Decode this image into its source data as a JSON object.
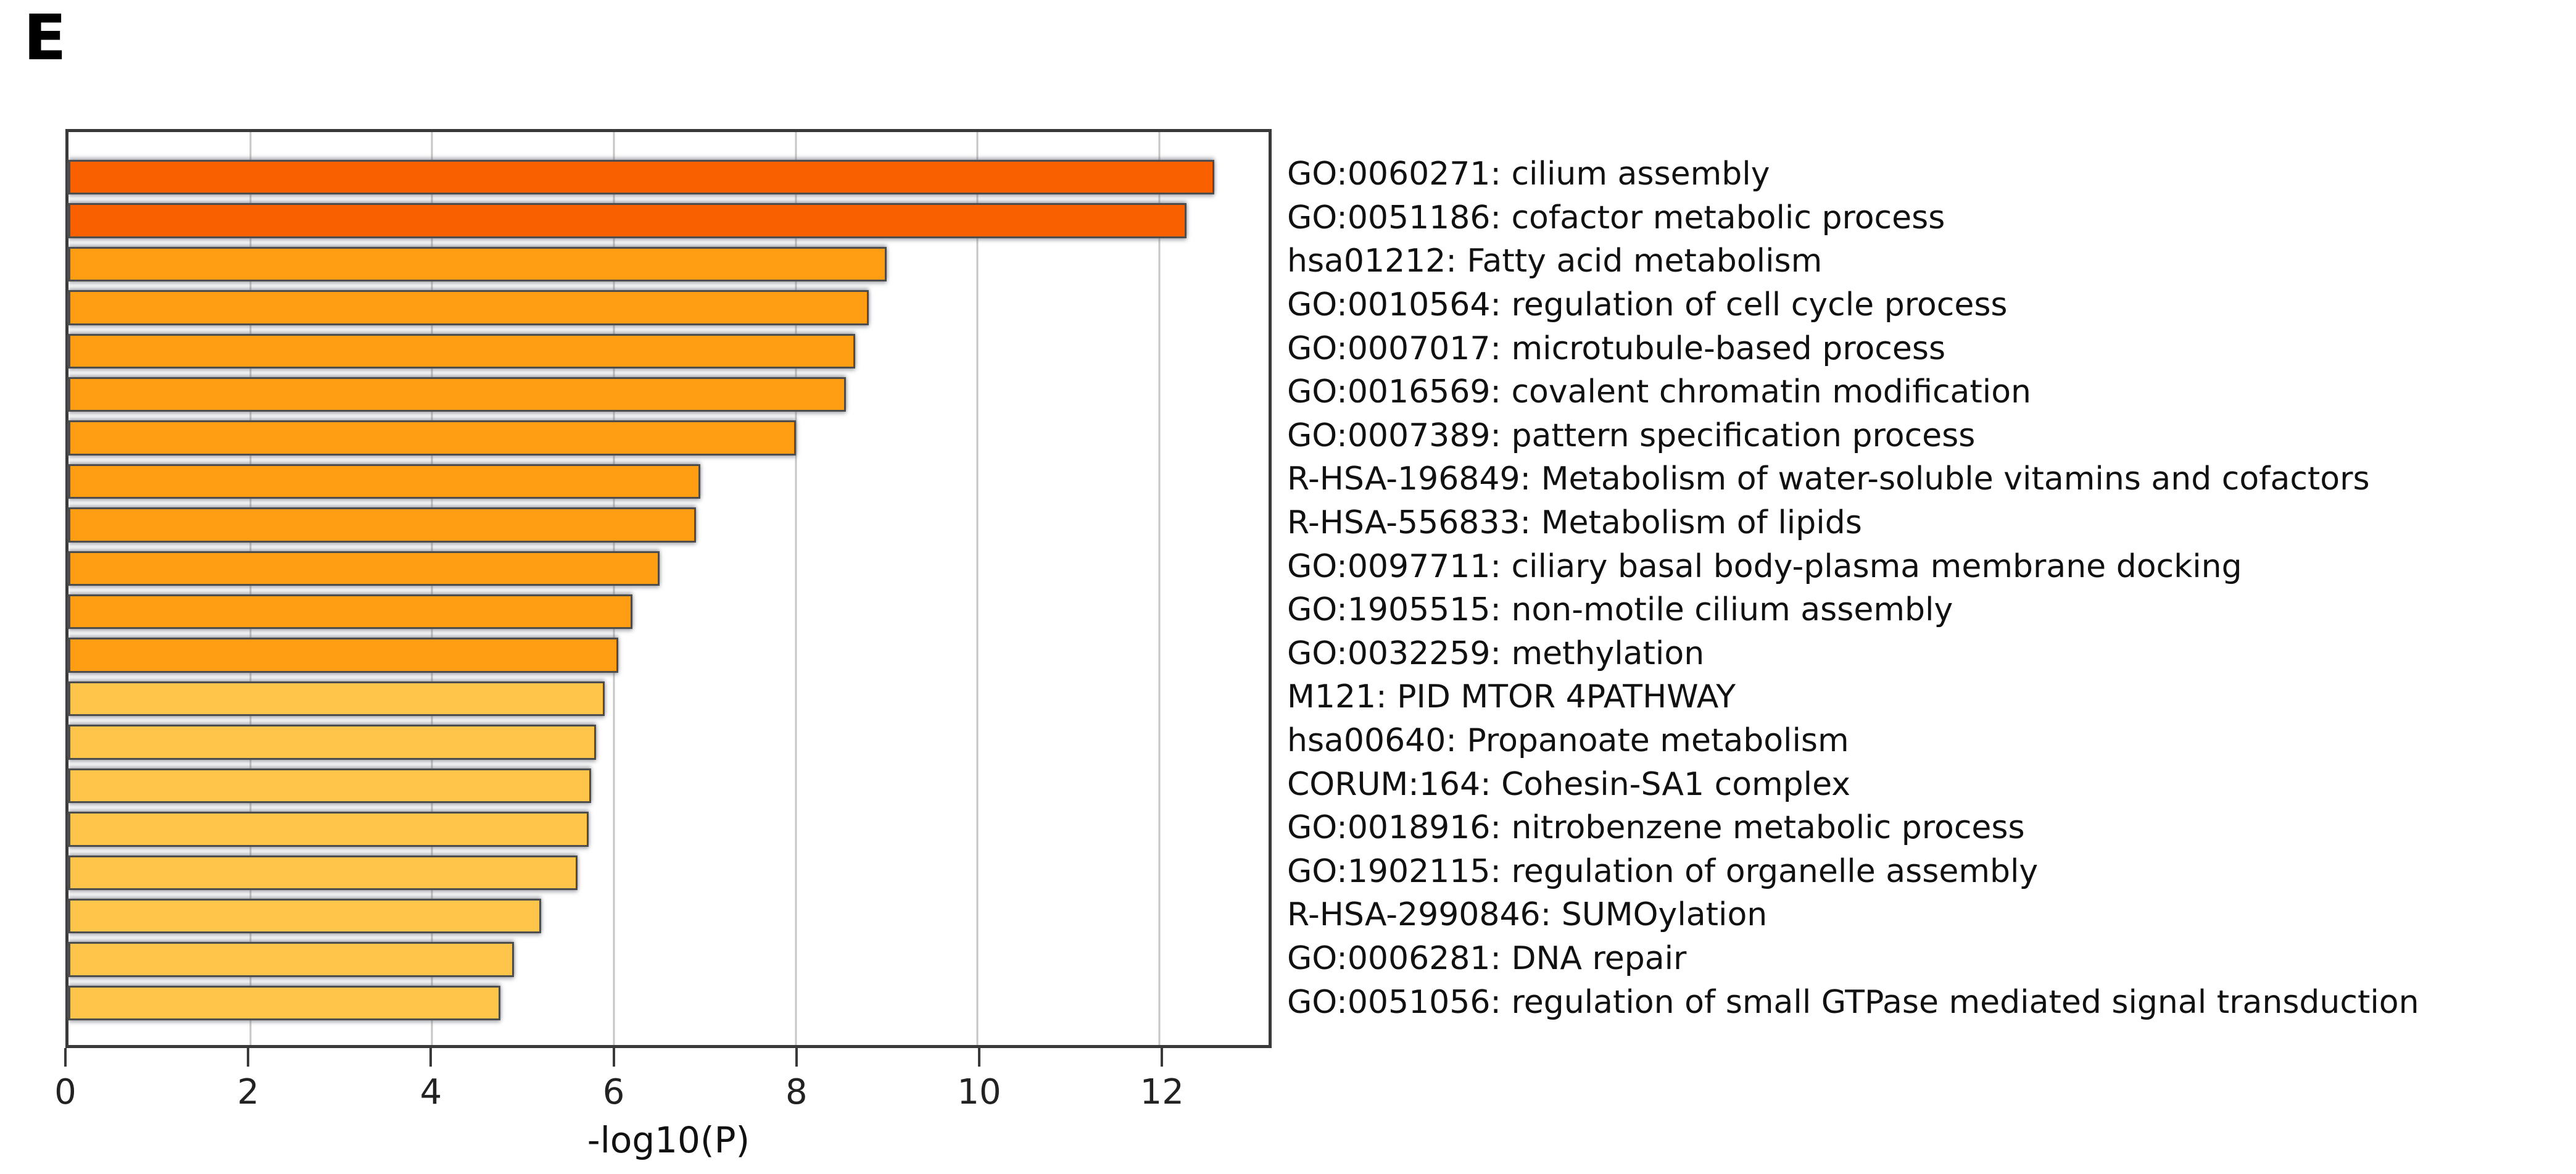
{
  "panel_label": "E",
  "chart_data": {
    "type": "bar",
    "orientation": "horizontal",
    "title": "",
    "xlabel": "-log10(P)",
    "xlim": [
      0,
      13.2
    ],
    "x_ticks": [
      0,
      2,
      4,
      6,
      8,
      10,
      12
    ],
    "grid": true,
    "legend": null,
    "categories": [
      "GO:0060271: cilium assembly",
      "GO:0051186: cofactor metabolic process",
      "hsa01212: Fatty acid metabolism",
      "GO:0010564: regulation of cell cycle process",
      "GO:0007017: microtubule-based process",
      "GO:0016569: covalent chromatin modification",
      "GO:0007389: pattern specification process",
      "R-HSA-196849: Metabolism of water-soluble vitamins and cofactors",
      "R-HSA-556833: Metabolism of lipids",
      "GO:0097711: ciliary basal body-plasma membrane docking",
      "GO:1905515: non-motile cilium assembly",
      "GO:0032259: methylation",
      "M121: PID MTOR 4PATHWAY",
      "hsa00640: Propanoate metabolism",
      "CORUM:164: Cohesin-SA1 complex",
      "GO:0018916: nitrobenzene metabolic process",
      "GO:1902115: regulation of organelle assembly",
      "R-HSA-2990846: SUMOylation",
      "GO:0006281: DNA repair",
      "GO:0051056: regulation of small GTPase mediated signal transduction"
    ],
    "values": [
      12.6,
      12.3,
      9.0,
      8.8,
      8.65,
      8.55,
      8.0,
      6.95,
      6.9,
      6.5,
      6.2,
      6.05,
      5.9,
      5.8,
      5.75,
      5.72,
      5.6,
      5.2,
      4.9,
      4.75
    ],
    "bar_colors": [
      "#F96100",
      "#F96100",
      "#FF9E13",
      "#FF9E13",
      "#FF9E13",
      "#FF9E13",
      "#FF9E13",
      "#FF9E13",
      "#FF9E13",
      "#FF9E13",
      "#FF9E13",
      "#FF9E13",
      "#FFC44A",
      "#FFC44A",
      "#FFC44A",
      "#FFC44A",
      "#FFC44A",
      "#FFC44A",
      "#FFC44A",
      "#FFC44A"
    ],
    "palette": {
      "p_bin_10_20": "#F96100",
      "p_bin_6_10": "#FF9E13",
      "p_bin_4_6": "#FFC44A"
    },
    "bar_border_color": "#4d4d4d",
    "gridline_color": "#c6c6c6",
    "axis_color": "#3a3a3a"
  }
}
